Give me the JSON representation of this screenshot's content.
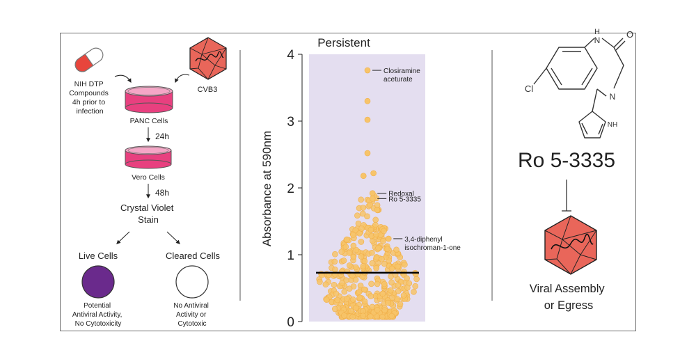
{
  "workflow": {
    "compounds_label": [
      "NIH DTP",
      "Compounds",
      "4h prior to",
      "infection"
    ],
    "virus_label": "CVB3",
    "panc_label": "PANC Cells",
    "step1_time": "24h",
    "vero_label": "Vero Cells",
    "step2_time": "48h",
    "stain_label": [
      "Crystal Violet",
      "Stain"
    ],
    "live_title": "Live Cells",
    "live_desc": [
      "Potential",
      "Antiviral Activity,",
      "No Cytotoxicity"
    ],
    "cleared_title": "Cleared Cells",
    "cleared_desc": [
      "No Antiviral",
      "Activity or",
      "Cytotoxic"
    ],
    "colors": {
      "pill_red": "#e8453c",
      "dish": "#e8407f",
      "virus": "#e9665a",
      "live": "#6a2a8c"
    }
  },
  "chart_data": {
    "type": "scatter",
    "title": "Persistent",
    "ylabel": "Absorbance at  590nm",
    "xlabel": "",
    "ylim": [
      0,
      4
    ],
    "yticks": [
      0,
      1,
      2,
      3,
      4
    ],
    "threshold": 0.73,
    "point_color": "#f7c46a",
    "band_color": "#e4def0",
    "highlighted": [
      {
        "y": 3.76,
        "dx": 0.0,
        "label": [
          "Closiramine",
          "aceturate"
        ]
      },
      {
        "y": 3.3,
        "dx": 0.0,
        "label": []
      },
      {
        "y": 3.02,
        "dx": 0.0,
        "label": []
      },
      {
        "y": 2.52,
        "dx": 0.0,
        "label": []
      },
      {
        "y": 2.22,
        "dx": 0.12,
        "label": []
      },
      {
        "y": 2.18,
        "dx": -0.08,
        "label": []
      },
      {
        "y": 1.92,
        "dx": 0.1,
        "label": [
          "Redoxal"
        ]
      },
      {
        "y": 1.84,
        "dx": 0.1,
        "label": [
          "Ro 5-3335"
        ]
      },
      {
        "y": 1.24,
        "dx": 0.42,
        "label": [
          "3,4-diphenyl",
          "isochroman-1-one"
        ]
      }
    ]
  },
  "mechanism": {
    "compound_name": "Ro 5-3335",
    "atoms": {
      "h": "H",
      "n1": "N",
      "o": "O",
      "cl": "Cl",
      "n2": "N",
      "nh": "NH"
    },
    "effect": [
      "Viral Assembly",
      "or Egress"
    ]
  }
}
